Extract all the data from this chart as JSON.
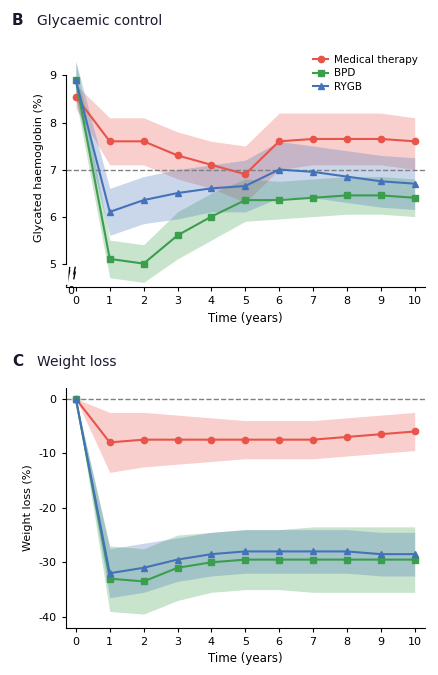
{
  "time": [
    0,
    1,
    2,
    3,
    4,
    5,
    6,
    7,
    8,
    9,
    10
  ],
  "glyc_med": [
    8.55,
    7.6,
    7.6,
    7.3,
    7.1,
    6.9,
    7.6,
    7.65,
    7.65,
    7.65,
    7.6
  ],
  "glyc_med_lo": [
    8.3,
    7.1,
    7.1,
    6.8,
    6.6,
    6.3,
    7.0,
    7.1,
    7.1,
    7.1,
    7.0
  ],
  "glyc_med_hi": [
    8.8,
    8.1,
    8.1,
    7.8,
    7.6,
    7.5,
    8.2,
    8.2,
    8.2,
    8.2,
    8.1
  ],
  "glyc_bpd": [
    8.9,
    5.1,
    5.0,
    5.6,
    6.0,
    6.35,
    6.35,
    6.4,
    6.45,
    6.45,
    6.4
  ],
  "glyc_bpd_lo": [
    8.5,
    4.7,
    4.6,
    5.1,
    5.5,
    5.9,
    5.95,
    6.0,
    6.05,
    6.05,
    6.0
  ],
  "glyc_bpd_hi": [
    9.3,
    5.5,
    5.4,
    6.1,
    6.5,
    6.8,
    6.75,
    6.8,
    6.85,
    6.85,
    6.8
  ],
  "glyc_rygb": [
    8.9,
    6.1,
    6.35,
    6.5,
    6.6,
    6.65,
    7.0,
    6.95,
    6.85,
    6.75,
    6.7
  ],
  "glyc_rygb_lo": [
    8.5,
    5.6,
    5.85,
    5.95,
    6.1,
    6.1,
    6.4,
    6.4,
    6.3,
    6.2,
    6.15
  ],
  "glyc_rygb_hi": [
    9.3,
    6.6,
    6.85,
    7.0,
    7.1,
    7.2,
    7.6,
    7.5,
    7.4,
    7.3,
    7.25
  ],
  "wt_med": [
    0,
    -8.0,
    -7.5,
    -7.5,
    -7.5,
    -7.5,
    -7.5,
    -7.5,
    -7.0,
    -6.5,
    -6.0
  ],
  "wt_med_lo": [
    0,
    -13.5,
    -12.5,
    -12.0,
    -11.5,
    -11.0,
    -11.0,
    -11.0,
    -10.5,
    -10.0,
    -9.5
  ],
  "wt_med_hi": [
    0,
    -2.5,
    -2.5,
    -3.0,
    -3.5,
    -4.0,
    -4.0,
    -4.0,
    -3.5,
    -3.0,
    -2.5
  ],
  "wt_bpd": [
    0,
    -33.0,
    -33.5,
    -31.0,
    -30.0,
    -29.5,
    -29.5,
    -29.5,
    -29.5,
    -29.5,
    -29.5
  ],
  "wt_bpd_lo": [
    0,
    -39.0,
    -39.5,
    -37.0,
    -35.5,
    -35.0,
    -35.0,
    -35.5,
    -35.5,
    -35.5,
    -35.5
  ],
  "wt_bpd_hi": [
    0,
    -27.0,
    -27.5,
    -25.0,
    -24.5,
    -24.0,
    -24.0,
    -23.5,
    -23.5,
    -23.5,
    -23.5
  ],
  "wt_rygb": [
    0,
    -32.0,
    -31.0,
    -29.5,
    -28.5,
    -28.0,
    -28.0,
    -28.0,
    -28.0,
    -28.5,
    -28.5
  ],
  "wt_rygb_lo": [
    0,
    -36.5,
    -35.5,
    -33.5,
    -32.5,
    -32.0,
    -32.0,
    -32.0,
    -32.0,
    -32.5,
    -32.5
  ],
  "wt_rygb_hi": [
    0,
    -27.5,
    -26.5,
    -25.5,
    -24.5,
    -24.0,
    -24.0,
    -24.0,
    -24.0,
    -24.5,
    -24.5
  ],
  "color_med": "#e8534a",
  "color_bpd": "#3a9e4e",
  "color_rygb": "#4472b8",
  "alpha_fill": 0.28,
  "xlabel": "Time (years)",
  "ylabel_b": "Glycated haemoglobin (%)",
  "ylabel_c": "Weight loss (%)",
  "glyc_ylim": [
    4.5,
    9.6
  ],
  "glyc_yticks": [
    5,
    6,
    7,
    8,
    9
  ],
  "wt_ylim": [
    -42,
    2
  ],
  "wt_yticks": [
    0,
    -10,
    -20,
    -30,
    -40
  ],
  "xticks": [
    0,
    1,
    2,
    3,
    4,
    5,
    6,
    7,
    8,
    9,
    10
  ]
}
